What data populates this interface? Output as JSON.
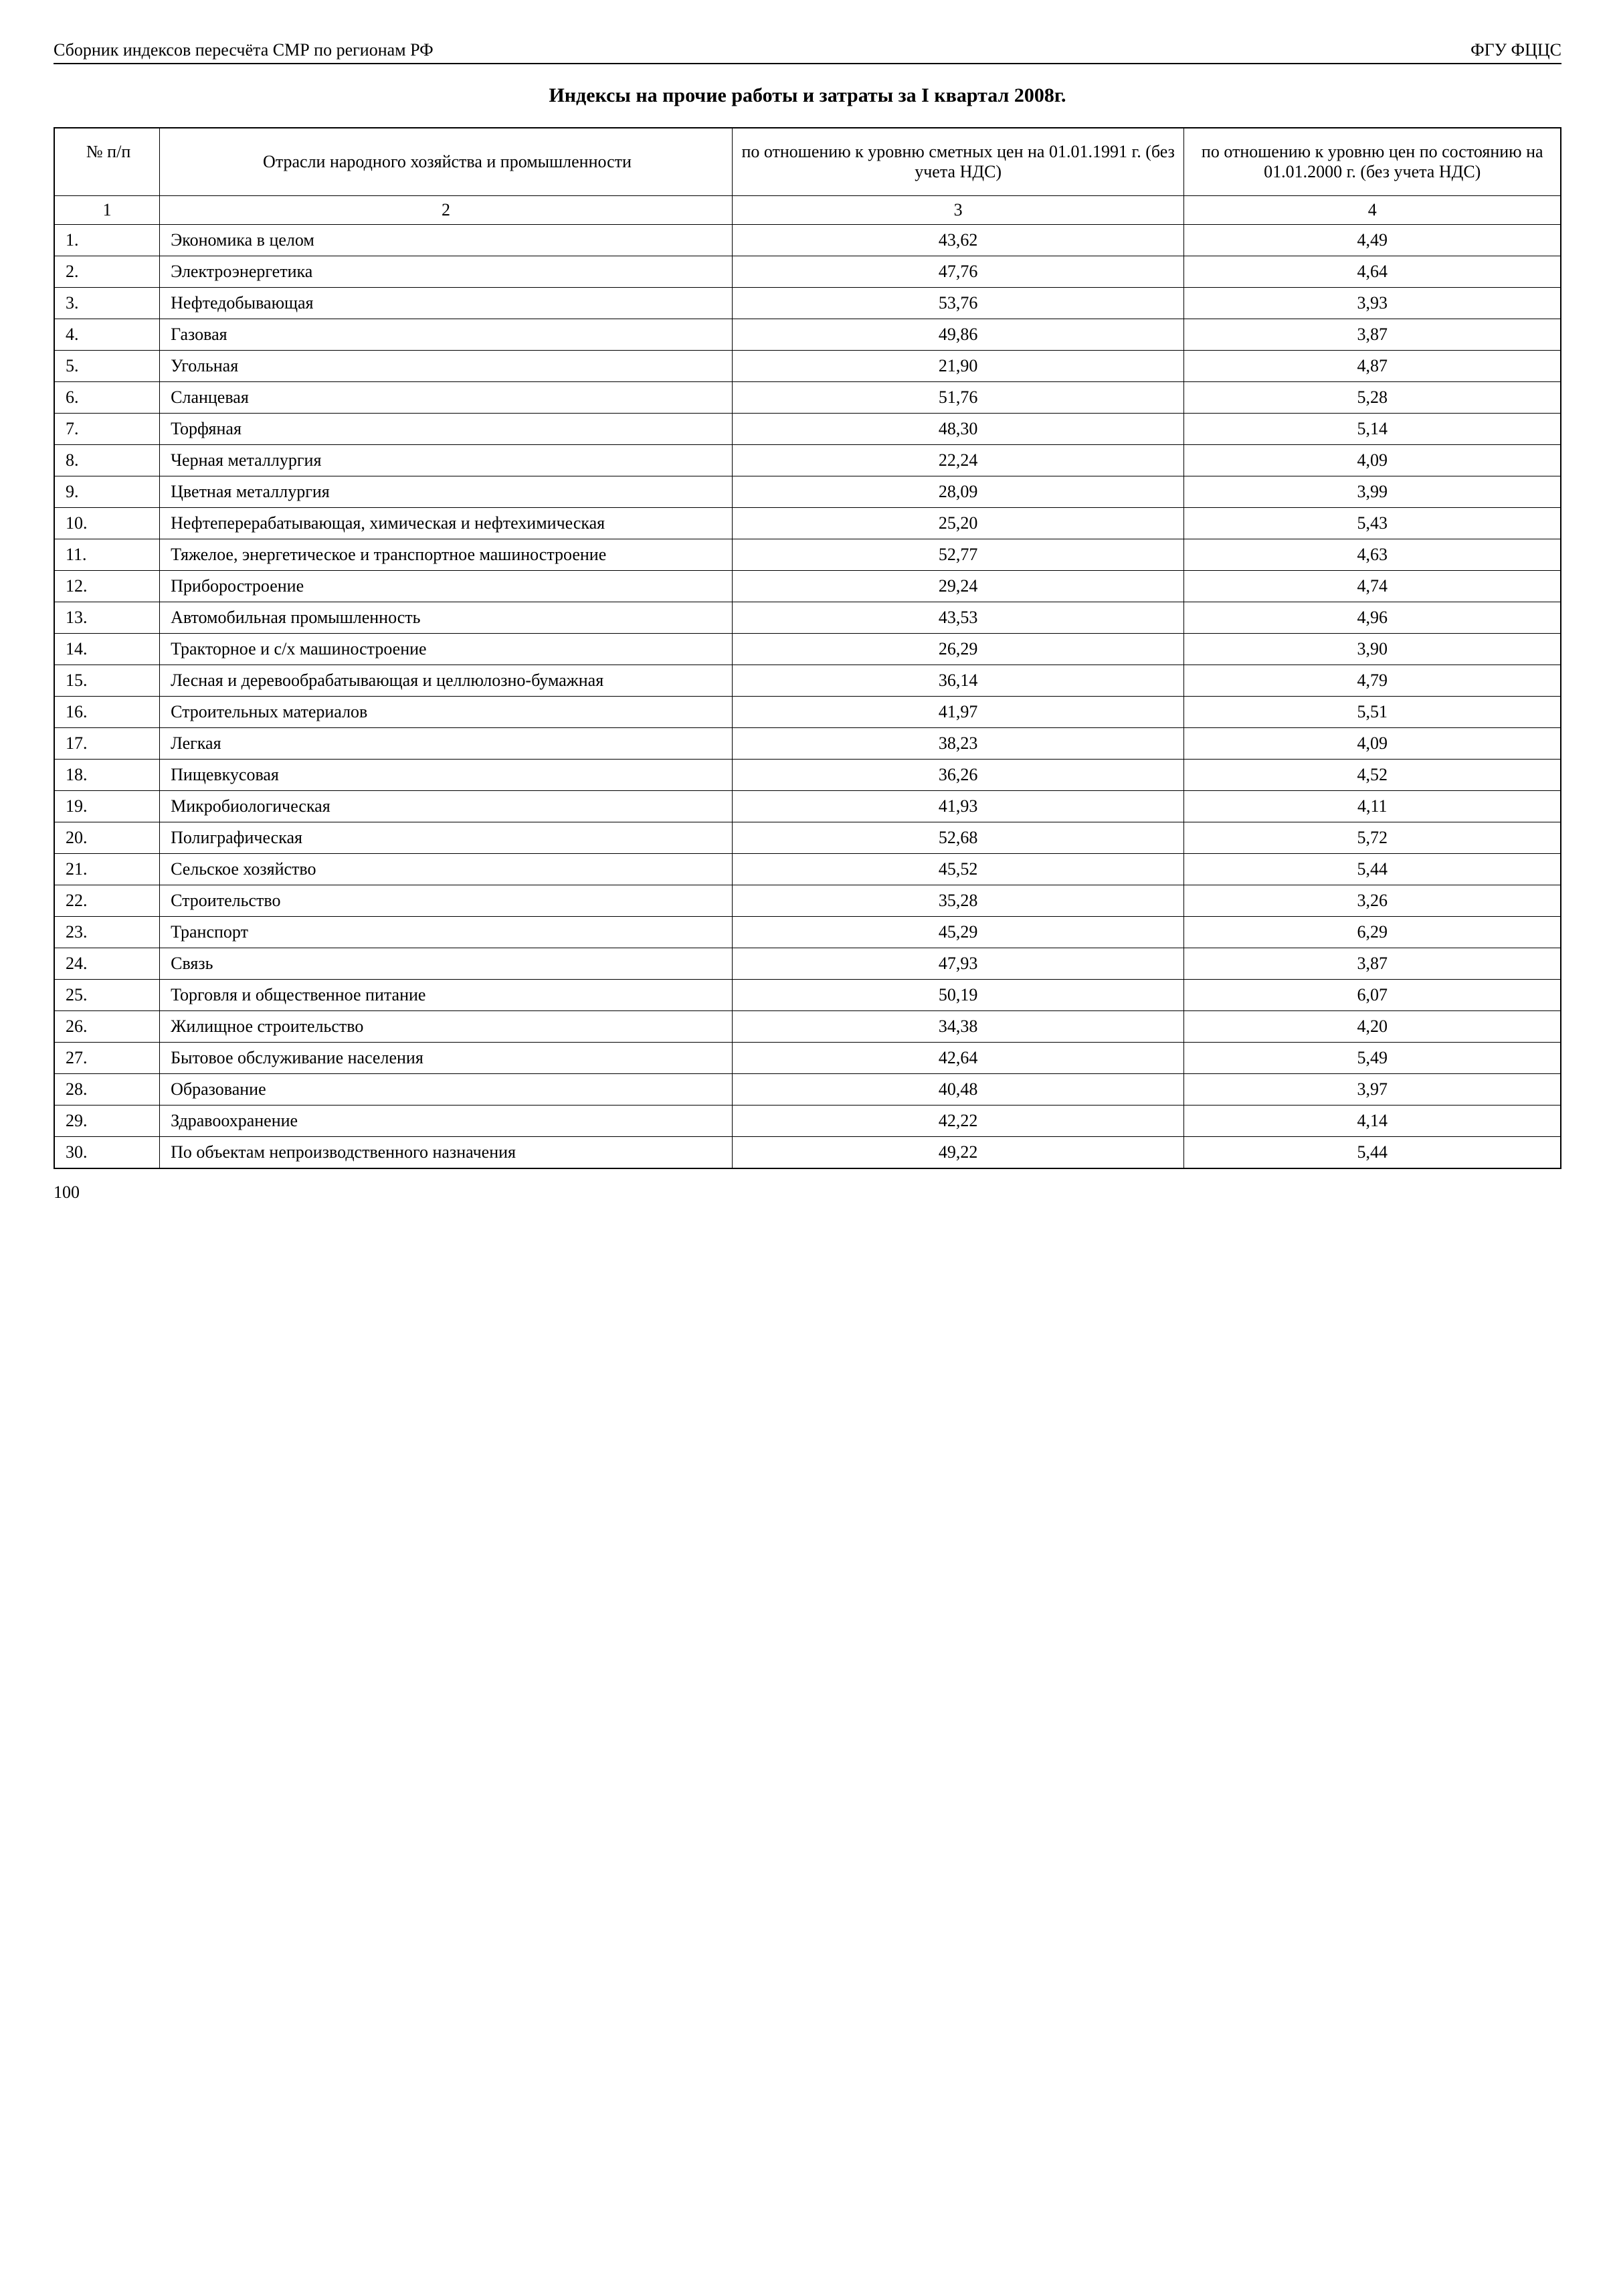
{
  "header": {
    "left": "Сборник индексов пересчёта СМР по регионам РФ",
    "right": "ФГУ ФЦЦС"
  },
  "title": "Индексы на прочие работы и затраты за I квартал 2008г.",
  "table": {
    "columns": {
      "num": "№ п/п",
      "name": "Отрасли народного хозяйства и промышленности",
      "col1991": "по отношению к уровню сметных цен на 01.01.1991 г. (без учета НДС)",
      "col2000": "по отношению к уровню цен по состоянию на 01.01.2000 г. (без учета НДС)"
    },
    "subhead": [
      "1",
      "2",
      "3",
      "4"
    ],
    "rows": [
      {
        "n": "1.",
        "name": "Экономика в целом",
        "v1": "43,62",
        "v2": "4,49"
      },
      {
        "n": "2.",
        "name": "Электроэнергетика",
        "v1": "47,76",
        "v2": "4,64"
      },
      {
        "n": "3.",
        "name": "Нефтедобывающая",
        "v1": "53,76",
        "v2": "3,93"
      },
      {
        "n": "4.",
        "name": "Газовая",
        "v1": "49,86",
        "v2": "3,87"
      },
      {
        "n": "5.",
        "name": "Угольная",
        "v1": "21,90",
        "v2": "4,87"
      },
      {
        "n": "6.",
        "name": "Сланцевая",
        "v1": "51,76",
        "v2": "5,28"
      },
      {
        "n": "7.",
        "name": "Торфяная",
        "v1": "48,30",
        "v2": "5,14"
      },
      {
        "n": "8.",
        "name": "Черная металлургия",
        "v1": "22,24",
        "v2": "4,09"
      },
      {
        "n": "9.",
        "name": "Цветная металлургия",
        "v1": "28,09",
        "v2": "3,99"
      },
      {
        "n": "10.",
        "name": "Нефтеперерабатывающая, химическая и нефтехимическая",
        "v1": "25,20",
        "v2": "5,43"
      },
      {
        "n": "11.",
        "name": "Тяжелое, энергетическое и транспортное машиностроение",
        "v1": "52,77",
        "v2": "4,63"
      },
      {
        "n": "12.",
        "name": "Приборостроение",
        "v1": "29,24",
        "v2": "4,74"
      },
      {
        "n": "13.",
        "name": "Автомобильная промышленность",
        "v1": "43,53",
        "v2": "4,96"
      },
      {
        "n": "14.",
        "name": "Тракторное и с/х машиностроение",
        "v1": "26,29",
        "v2": "3,90"
      },
      {
        "n": "15.",
        "name": "Лесная и деревообрабатывающая и целлюлозно-бумажная",
        "v1": "36,14",
        "v2": "4,79"
      },
      {
        "n": "16.",
        "name": "Строительных материалов",
        "v1": "41,97",
        "v2": "5,51"
      },
      {
        "n": "17.",
        "name": "Легкая",
        "v1": "38,23",
        "v2": "4,09"
      },
      {
        "n": "18.",
        "name": "Пищевкусовая",
        "v1": "36,26",
        "v2": "4,52"
      },
      {
        "n": "19.",
        "name": "Микробиологическая",
        "v1": "41,93",
        "v2": "4,11"
      },
      {
        "n": "20.",
        "name": "Полиграфическая",
        "v1": "52,68",
        "v2": "5,72"
      },
      {
        "n": "21.",
        "name": "Сельское хозяйство",
        "v1": "45,52",
        "v2": "5,44"
      },
      {
        "n": "22.",
        "name": "Строительство",
        "v1": "35,28",
        "v2": "3,26"
      },
      {
        "n": "23.",
        "name": "Транспорт",
        "v1": "45,29",
        "v2": "6,29"
      },
      {
        "n": "24.",
        "name": "Связь",
        "v1": "47,93",
        "v2": "3,87"
      },
      {
        "n": "25.",
        "name": "Торговля и общественное питание",
        "v1": "50,19",
        "v2": "6,07"
      },
      {
        "n": "26.",
        "name": "Жилищное строительство",
        "v1": "34,38",
        "v2": "4,20"
      },
      {
        "n": "27.",
        "name": "Бытовое обслуживание населения",
        "v1": "42,64",
        "v2": "5,49"
      },
      {
        "n": "28.",
        "name": "Образование",
        "v1": "40,48",
        "v2": "3,97"
      },
      {
        "n": "29.",
        "name": "Здравоохранение",
        "v1": "42,22",
        "v2": "4,14"
      },
      {
        "n": "30.",
        "name": "По объектам непроизводственного назначения",
        "v1": "49,22",
        "v2": "5,44"
      }
    ]
  },
  "page_number": "100",
  "styling": {
    "background_color": "#ffffff",
    "text_color": "#000000",
    "border_color": "#000000",
    "font_family": "Times New Roman",
    "body_fontsize": 26,
    "title_fontsize": 30,
    "col_widths": {
      "num": "7%",
      "name": "38%",
      "v1": "30%",
      "v2": "25%"
    }
  }
}
